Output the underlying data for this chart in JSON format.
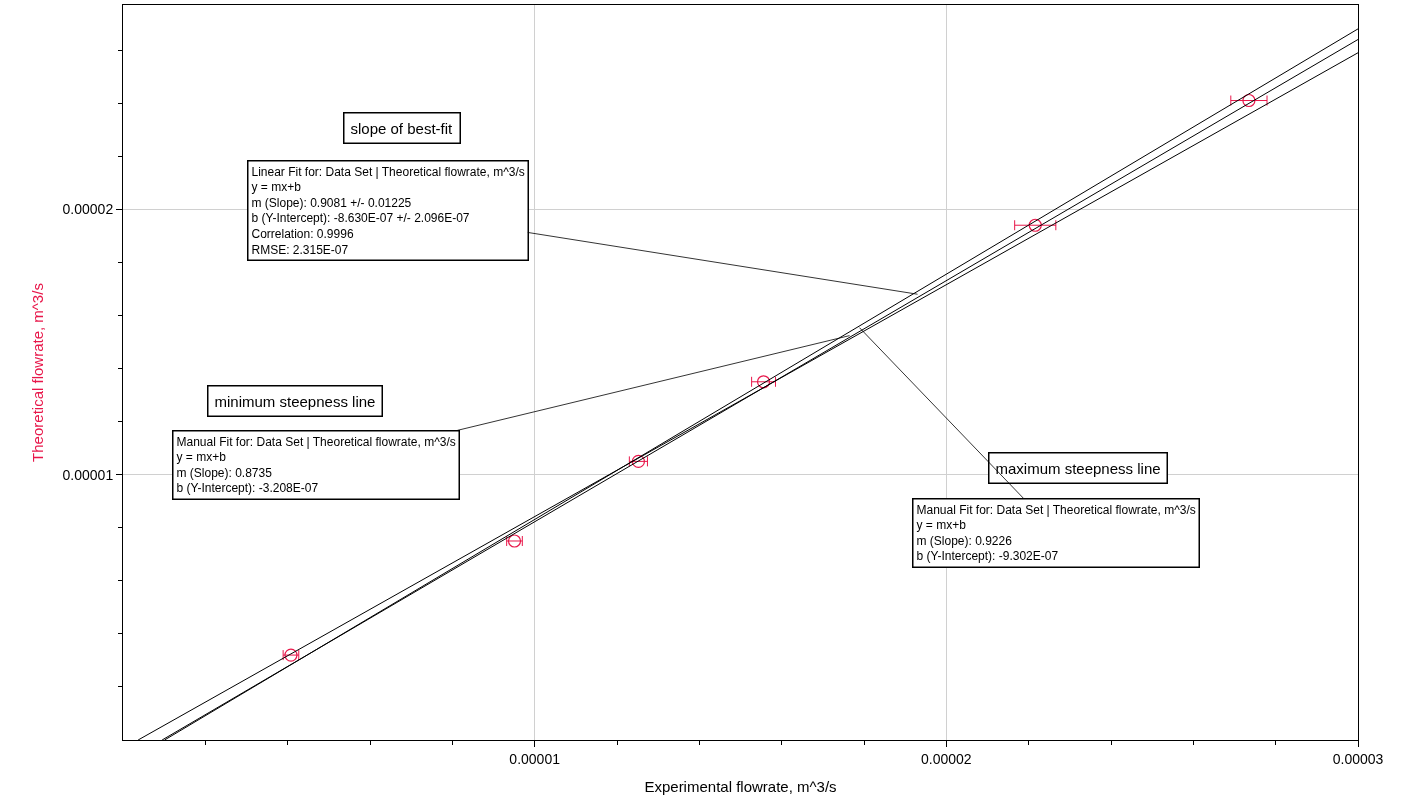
{
  "chart_data": {
    "type": "scatter",
    "xlabel": "Experimental flowrate, m^3/s",
    "ylabel": "Theoretical flowrate, m^3/s",
    "x": [
      4.08e-06,
      9.51e-06,
      1.252e-05,
      1.556e-05,
      2.216e-05,
      2.735e-05
    ],
    "series": [
      {
        "color": "#e8174a",
        "values": [
          3.2e-06,
          7.5e-06,
          1.05e-05,
          1.35e-05,
          1.94e-05,
          2.41e-05
        ],
        "xerrors": [
          1.9e-07,
          1.9e-07,
          2.2e-07,
          2.9e-07,
          5e-07,
          4.4e-07
        ]
      },
      {
        "type": "line",
        "color": "#000000",
        "x": [
          9.5e-07,
          3e-05
        ],
        "values": [
          0,
          2.64e-05
        ]
      },
      {
        "type": "line",
        "color": "#000000",
        "x": [
          3.67e-07,
          3e-05
        ],
        "values": [
          0,
          2.59e-05
        ]
      },
      {
        "type": "line",
        "color": "#000000",
        "x": [
          1.01e-06,
          3e-05
        ],
        "values": [
          0,
          2.68e-05
        ]
      }
    ],
    "xlim": [
      0,
      3e-05
    ],
    "ylim": [
      0,
      2.77e-05
    ],
    "xticks": [
      {
        "value": 2e-06,
        "label": null
      },
      {
        "value": 4e-06,
        "label": null
      },
      {
        "value": 6e-06,
        "label": null
      },
      {
        "value": 8e-06,
        "label": null
      },
      {
        "value": 1e-05,
        "label": "0.00001"
      },
      {
        "value": 1.2e-05,
        "label": null
      },
      {
        "value": 1.4e-05,
        "label": null
      },
      {
        "value": 1.6e-05,
        "label": null
      },
      {
        "value": 1.8e-05,
        "label": null
      },
      {
        "value": 2e-05,
        "label": "0.00002"
      },
      {
        "value": 2.2e-05,
        "label": null
      },
      {
        "value": 2.4e-05,
        "label": null
      },
      {
        "value": 2.6e-05,
        "label": null
      },
      {
        "value": 2.8e-05,
        "label": null
      },
      {
        "value": 3e-05,
        "label": "0.00003"
      }
    ],
    "yticks": [
      {
        "value": 2e-06,
        "label": null
      },
      {
        "value": 4e-06,
        "label": null
      },
      {
        "value": 6e-06,
        "label": null
      },
      {
        "value": 8e-06,
        "label": null
      },
      {
        "value": 1e-05,
        "label": "0.00001"
      },
      {
        "value": 1.2e-05,
        "label": null
      },
      {
        "value": 1.4e-05,
        "label": null
      },
      {
        "value": 1.6e-05,
        "label": null
      },
      {
        "value": 1.8e-05,
        "label": null
      },
      {
        "value": 2e-05,
        "label": "0.00002"
      },
      {
        "value": 2.2e-05,
        "label": null
      },
      {
        "value": 2.4e-05,
        "label": null
      },
      {
        "value": 2.6e-05,
        "label": null
      }
    ],
    "grid": true,
    "annotations": [
      "slope of best-fit",
      {
        "text": "Linear Fit for: Data Set | Theoretical flowrate, m^3/s\ny = mx+b\nm (Slope): 0.9081 +/- 0.01225\nb (Y-Intercept): -8.630E-07 +/- 2.096E-07\nCorrelation: 0.9996\nRMSE: 2.315E-07",
        "x": 1.93e-05,
        "y": 1.68e-05
      },
      "minimum steepness line",
      {
        "text": "Manual Fit for: Data Set | Theoretical flowrate, m^3/s\ny = mx+b\nm (Slope): 0.8735\nb (Y-Intercept): -3.208E-07",
        "x": 1.765e-05,
        "y": 1.524e-05
      },
      "maximum steepness line",
      {
        "text": "Manual Fit for: Data Set | Theoretical flowrate, m^3/s\ny = mx+b\nm (Slope): 0.9226\nb (Y-Intercept): -9.302E-07",
        "x": 1.789e-05,
        "y": 1.554e-05
      }
    ]
  }
}
